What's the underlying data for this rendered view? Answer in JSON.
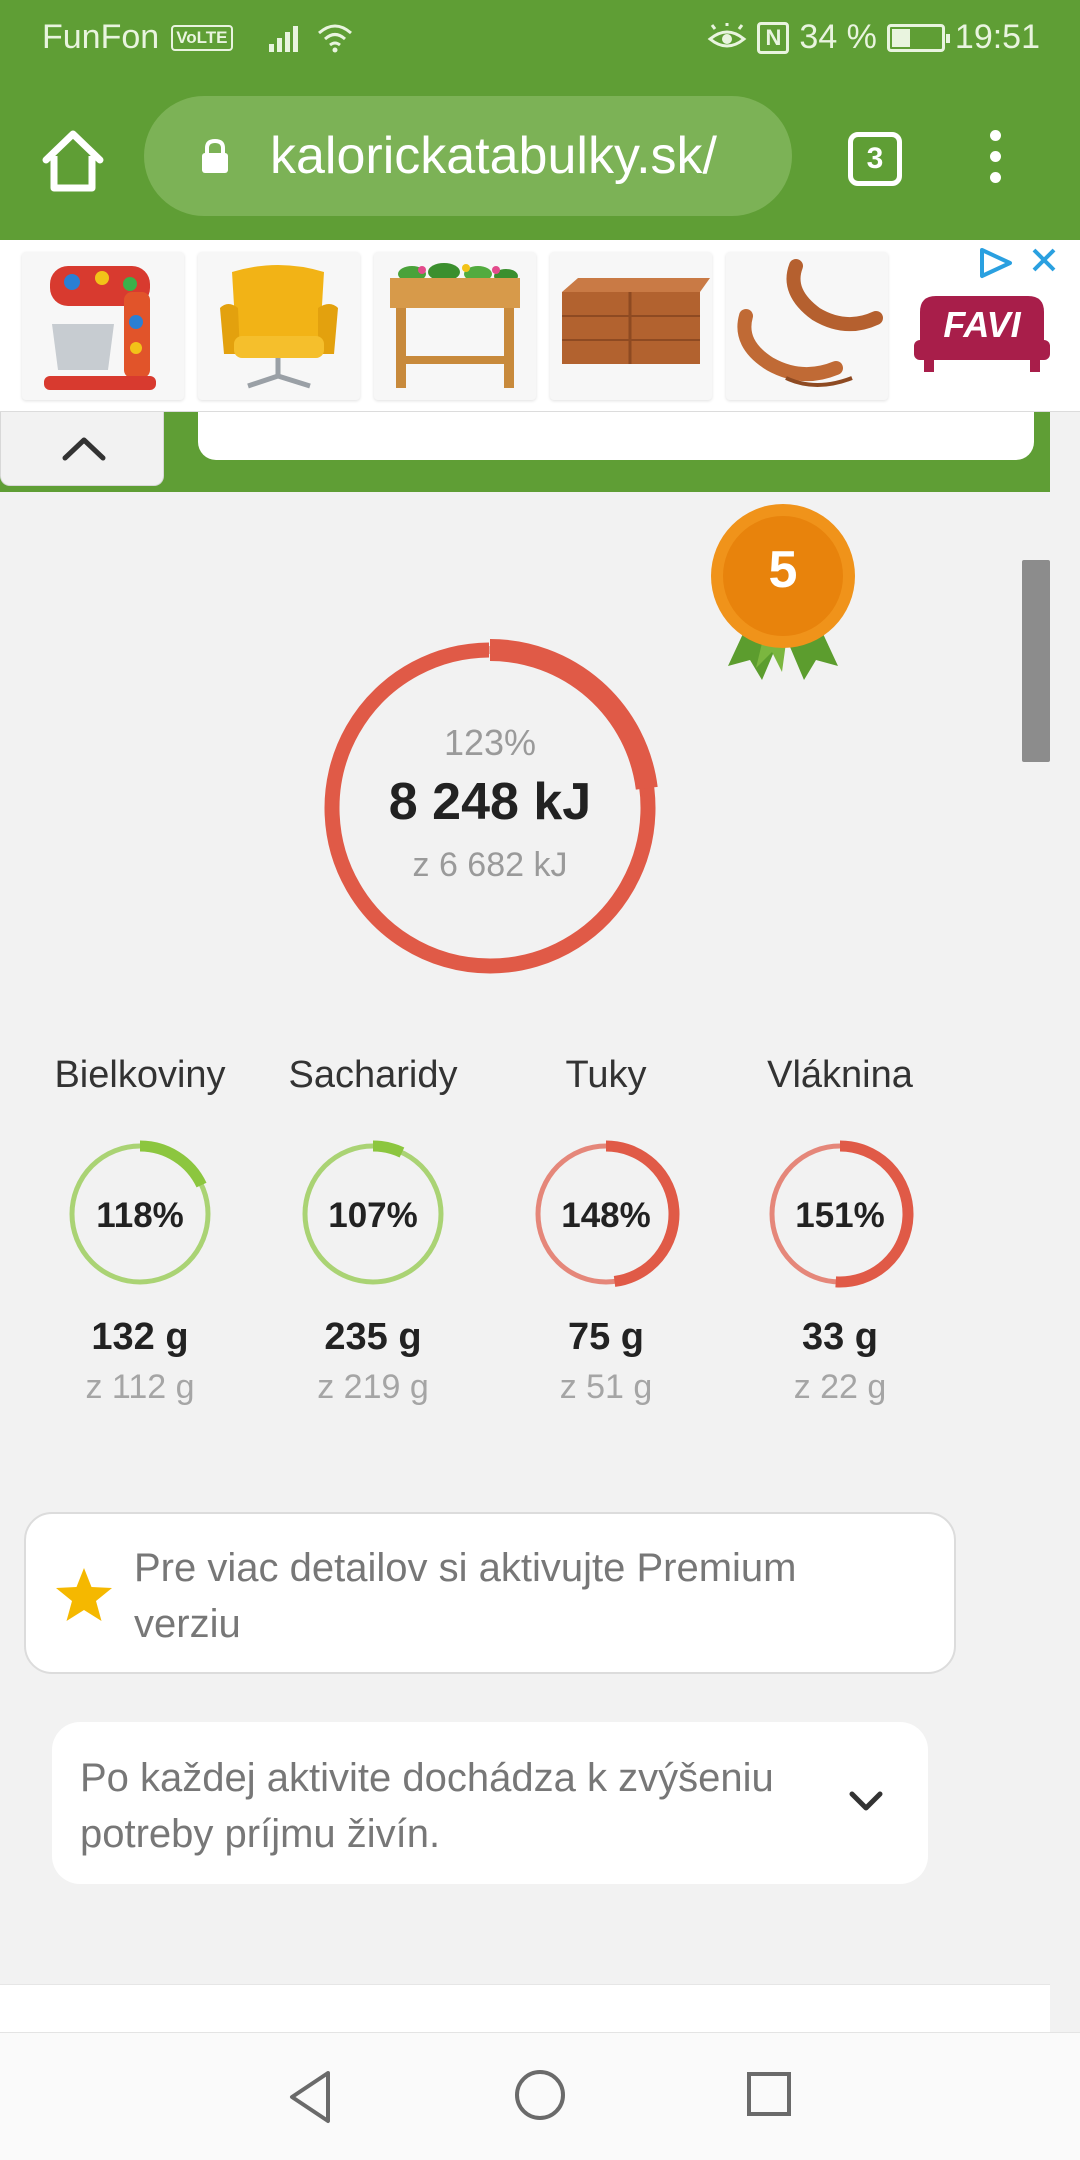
{
  "status_bar": {
    "carrier": "FunFon",
    "volte": "VoLTE",
    "battery_text": "34 %",
    "time": "19:51",
    "nfc": "N"
  },
  "browser": {
    "url": "kalorickatabulky.sk/",
    "tab_count": "3"
  },
  "ad": {
    "products": [
      "stand-mixer",
      "yellow-armchair",
      "raised-planter",
      "wooden-planter-box",
      "rocking-loungers"
    ],
    "brand": "FAVI"
  },
  "medal": {
    "level": "5"
  },
  "energy": {
    "percent": "123%",
    "value": "8 248 kJ",
    "of_goal": "z 6 682 kJ",
    "fraction": 1.23
  },
  "macros": [
    {
      "label": "Bielkoviny",
      "percent": "118%",
      "value": "132 g",
      "of_goal": "z 112 g",
      "color": "#8cc63f",
      "fraction": 1.18
    },
    {
      "label": "Sacharidy",
      "percent": "107%",
      "value": "235 g",
      "of_goal": "z 219 g",
      "color": "#8cc63f",
      "fraction": 1.07
    },
    {
      "label": "Tuky",
      "percent": "148%",
      "value": "75 g",
      "of_goal": "z 51 g",
      "color": "#e05a47",
      "fraction": 1.48
    },
    {
      "label": "Vláknina",
      "percent": "151%",
      "value": "33 g",
      "of_goal": "z 22 g",
      "color": "#e05a47",
      "fraction": 1.51
    }
  ],
  "premium": {
    "text": "Pre viac detailov si aktivujte Premium verziu"
  },
  "info": {
    "text": "Po každej aktivite dochádza k zvýšeniu potreby príjmu živín."
  },
  "colors": {
    "brand_green": "#5f9e35",
    "over_red": "#e05a47",
    "ok_green": "#8cc63f",
    "medal_orange": "#e8830c"
  }
}
